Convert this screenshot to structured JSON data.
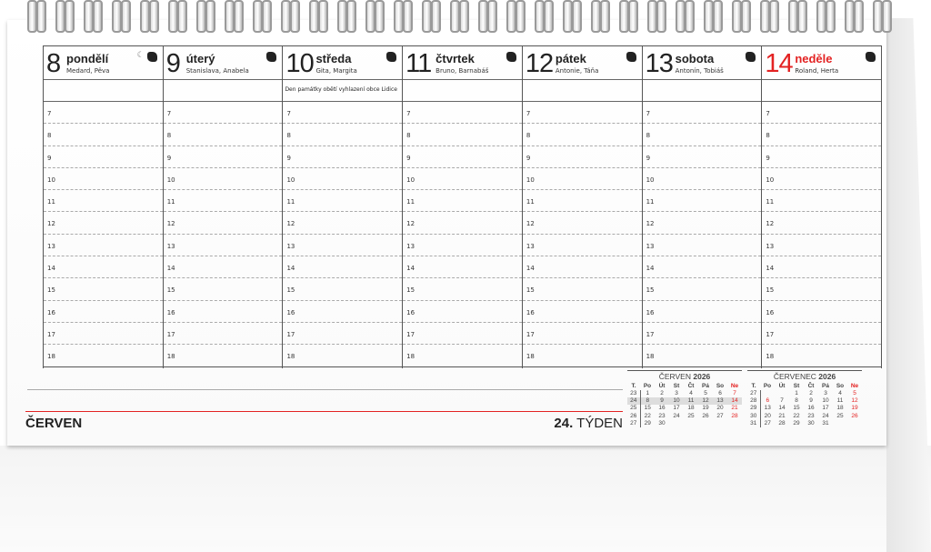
{
  "days": [
    {
      "num": "8",
      "name": "pondělí",
      "names": "Medard, Pěva",
      "note": "",
      "moon": true,
      "sunday": false
    },
    {
      "num": "9",
      "name": "úterý",
      "names": "Stanislava, Anabela",
      "note": "",
      "moon": false,
      "sunday": false
    },
    {
      "num": "10",
      "name": "středa",
      "names": "Gita, Margita",
      "note": "Den památky obětí vyhlazení obce Lidice",
      "moon": false,
      "sunday": false
    },
    {
      "num": "11",
      "name": "čtvrtek",
      "names": "Bruno, Barnabáš",
      "note": "",
      "moon": false,
      "sunday": false
    },
    {
      "num": "12",
      "name": "pátek",
      "names": "Antonie, Táňa",
      "note": "",
      "moon": false,
      "sunday": false
    },
    {
      "num": "13",
      "name": "sobota",
      "names": "Antonín, Tobiáš",
      "note": "",
      "moon": false,
      "sunday": false
    },
    {
      "num": "14",
      "name": "neděle",
      "names": "Roland, Herta",
      "note": "",
      "moon": false,
      "sunday": true
    }
  ],
  "hours": [
    "7",
    "8",
    "9",
    "10",
    "11",
    "12",
    "13",
    "14",
    "15",
    "16",
    "17",
    "18"
  ],
  "footer": {
    "month": "ČERVEN",
    "week_num": "24.",
    "week_label": "TÝDEN"
  },
  "colors": {
    "accent": "#e32222"
  },
  "mini": [
    {
      "title_month": "ČERVEN",
      "title_year": "2026",
      "headers": [
        "T.",
        "Po",
        "Út",
        "St",
        "Čt",
        "Pá",
        "So",
        "Ne"
      ],
      "rows": [
        [
          "23",
          "1",
          "2",
          "3",
          "4",
          "5",
          "6",
          "7"
        ],
        [
          "24",
          "8",
          "9",
          "10",
          "11",
          "12",
          "13",
          "14"
        ],
        [
          "25",
          "15",
          "16",
          "17",
          "18",
          "19",
          "20",
          "21"
        ],
        [
          "26",
          "22",
          "23",
          "24",
          "25",
          "26",
          "27",
          "28"
        ],
        [
          "27",
          "29",
          "30",
          "",
          "",
          "",
          "",
          ""
        ]
      ],
      "highlight_week": "24",
      "red_days": []
    },
    {
      "title_month": "ČERVENEC",
      "title_year": "2026",
      "headers": [
        "T.",
        "Po",
        "Út",
        "St",
        "Čt",
        "Pá",
        "So",
        "Ne"
      ],
      "rows": [
        [
          "27",
          "",
          "",
          "1",
          "2",
          "3",
          "4",
          "5"
        ],
        [
          "28",
          "6",
          "7",
          "8",
          "9",
          "10",
          "11",
          "12"
        ],
        [
          "29",
          "13",
          "14",
          "15",
          "16",
          "17",
          "18",
          "19"
        ],
        [
          "30",
          "20",
          "21",
          "22",
          "23",
          "24",
          "25",
          "26"
        ],
        [
          "31",
          "27",
          "28",
          "29",
          "30",
          "31",
          "",
          ""
        ]
      ],
      "highlight_week": "",
      "red_days": [
        "6"
      ]
    }
  ]
}
